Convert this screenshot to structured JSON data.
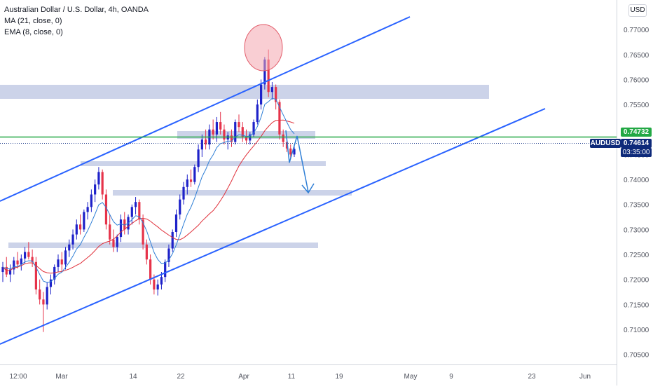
{
  "header": {
    "symbol_line": "Australian Dollar / U.S. Dollar, 4h, OANDA",
    "ma_line": "MA (21, close, 0)",
    "ema_line": "EMA (8, close, 0)"
  },
  "currency_button": "USD",
  "price_axis": {
    "ticks": [
      "0.77000",
      "0.76500",
      "0.76000",
      "0.75500",
      "0.75000",
      "0.74500",
      "0.74000",
      "0.73500",
      "0.73000",
      "0.72500",
      "0.72000",
      "0.71500",
      "0.71000",
      "0.70500"
    ]
  },
  "time_axis": {
    "ticks": [
      "12:00",
      "Mar",
      "14",
      "22",
      "Apr",
      "11",
      "19",
      "May",
      "9",
      "23",
      "Jun"
    ]
  },
  "badges": {
    "green_level": "0.74732",
    "symbol": "AUDUSD",
    "last_price": "0.74614",
    "countdown": "03:35:00"
  },
  "colors": {
    "up_candle": "#1e22c9",
    "down_candle": "#e6334a",
    "ma_line": "#e0303a",
    "ema_line": "#2f7fd6",
    "channel": "#2962ff",
    "zones": "#b7c0df",
    "green_level": "#22a844",
    "highlight_circle": "#f4a6ae"
  },
  "chart_data": {
    "type": "candlestick",
    "ylim": [
      0.703,
      0.7745
    ],
    "series": [
      {
        "name": "AUDUSD",
        "ohlc": [
          [
            0.7215,
            0.7235,
            0.7195,
            0.7225
          ],
          [
            0.7225,
            0.7245,
            0.7205,
            0.721
          ],
          [
            0.721,
            0.723,
            0.7195,
            0.722
          ],
          [
            0.722,
            0.7245,
            0.721,
            0.7238
          ],
          [
            0.7238,
            0.7255,
            0.7222,
            0.723
          ],
          [
            0.723,
            0.725,
            0.7218,
            0.7242
          ],
          [
            0.7242,
            0.7265,
            0.7232,
            0.7255
          ],
          [
            0.7255,
            0.7275,
            0.724,
            0.7245
          ],
          [
            0.7245,
            0.726,
            0.7225,
            0.7235
          ],
          [
            0.7235,
            0.7245,
            0.717,
            0.718
          ],
          [
            0.718,
            0.72,
            0.715,
            0.716
          ],
          [
            0.716,
            0.7175,
            0.7095,
            0.715
          ],
          [
            0.715,
            0.7195,
            0.714,
            0.7185
          ],
          [
            0.7185,
            0.721,
            0.717,
            0.72
          ],
          [
            0.72,
            0.723,
            0.719,
            0.7225
          ],
          [
            0.7225,
            0.725,
            0.7215,
            0.724
          ],
          [
            0.724,
            0.7255,
            0.7215,
            0.723
          ],
          [
            0.723,
            0.7265,
            0.722,
            0.7258
          ],
          [
            0.7258,
            0.728,
            0.7245,
            0.727
          ],
          [
            0.727,
            0.73,
            0.726,
            0.729
          ],
          [
            0.729,
            0.732,
            0.728,
            0.731
          ],
          [
            0.731,
            0.733,
            0.729,
            0.73
          ],
          [
            0.73,
            0.734,
            0.7295,
            0.7335
          ],
          [
            0.7335,
            0.7355,
            0.732,
            0.7345
          ],
          [
            0.7345,
            0.738,
            0.7335,
            0.737
          ],
          [
            0.737,
            0.74,
            0.7355,
            0.739
          ],
          [
            0.739,
            0.7425,
            0.738,
            0.7415
          ],
          [
            0.7415,
            0.742,
            0.736,
            0.737
          ],
          [
            0.737,
            0.738,
            0.73,
            0.731
          ],
          [
            0.731,
            0.733,
            0.727,
            0.728
          ],
          [
            0.728,
            0.73,
            0.7255,
            0.7265
          ],
          [
            0.7265,
            0.729,
            0.7255,
            0.7285
          ],
          [
            0.7285,
            0.733,
            0.7275,
            0.732
          ],
          [
            0.732,
            0.7335,
            0.729,
            0.73
          ],
          [
            0.73,
            0.733,
            0.729,
            0.7325
          ],
          [
            0.7325,
            0.735,
            0.731,
            0.7345
          ],
          [
            0.7345,
            0.7365,
            0.733,
            0.7355
          ],
          [
            0.7355,
            0.736,
            0.731,
            0.732
          ],
          [
            0.732,
            0.733,
            0.726,
            0.727
          ],
          [
            0.727,
            0.728,
            0.723,
            0.724
          ],
          [
            0.724,
            0.725,
            0.719,
            0.72
          ],
          [
            0.72,
            0.721,
            0.717,
            0.718
          ],
          [
            0.718,
            0.72,
            0.7168,
            0.719
          ],
          [
            0.719,
            0.7215,
            0.718,
            0.7205
          ],
          [
            0.7205,
            0.724,
            0.7195,
            0.7235
          ],
          [
            0.7235,
            0.727,
            0.7225,
            0.7262
          ],
          [
            0.7262,
            0.73,
            0.7255,
            0.7295
          ],
          [
            0.7295,
            0.734,
            0.7285,
            0.733
          ],
          [
            0.733,
            0.737,
            0.732,
            0.736
          ],
          [
            0.736,
            0.7395,
            0.735,
            0.7385
          ],
          [
            0.7385,
            0.741,
            0.737,
            0.74
          ],
          [
            0.74,
            0.742,
            0.7385,
            0.7395
          ],
          [
            0.7395,
            0.743,
            0.739,
            0.7425
          ],
          [
            0.7425,
            0.747,
            0.7415,
            0.746
          ],
          [
            0.746,
            0.749,
            0.7445,
            0.748
          ],
          [
            0.748,
            0.75,
            0.746,
            0.747
          ],
          [
            0.747,
            0.751,
            0.746,
            0.75
          ],
          [
            0.75,
            0.752,
            0.748,
            0.749
          ],
          [
            0.749,
            0.7525,
            0.7475,
            0.7515
          ],
          [
            0.7515,
            0.7535,
            0.749,
            0.75
          ],
          [
            0.75,
            0.751,
            0.747,
            0.748
          ],
          [
            0.748,
            0.7495,
            0.746,
            0.7488
          ],
          [
            0.7488,
            0.75,
            0.7465,
            0.7475
          ],
          [
            0.7475,
            0.752,
            0.747,
            0.7515
          ],
          [
            0.7515,
            0.753,
            0.7495,
            0.7505
          ],
          [
            0.7505,
            0.7515,
            0.7475,
            0.7485
          ],
          [
            0.7485,
            0.75,
            0.747,
            0.7478
          ],
          [
            0.7478,
            0.7495,
            0.747,
            0.749
          ],
          [
            0.749,
            0.752,
            0.7485,
            0.7515
          ],
          [
            0.7515,
            0.756,
            0.751,
            0.755
          ],
          [
            0.755,
            0.76,
            0.754,
            0.759
          ],
          [
            0.759,
            0.7645,
            0.758,
            0.764
          ],
          [
            0.764,
            0.766,
            0.7565,
            0.7575
          ],
          [
            0.7575,
            0.7595,
            0.756,
            0.7585
          ],
          [
            0.7585,
            0.759,
            0.754,
            0.7555
          ],
          [
            0.7555,
            0.756,
            0.748,
            0.749
          ],
          [
            0.749,
            0.75,
            0.7465,
            0.7475
          ],
          [
            0.7475,
            0.7485,
            0.7455,
            0.7462
          ],
          [
            0.7462,
            0.747,
            0.744,
            0.745
          ],
          [
            0.745,
            0.747,
            0.7445,
            0.7461
          ]
        ]
      },
      {
        "name": "MA (21, close, 0)"
      },
      {
        "name": "EMA (8, close, 0)"
      }
    ],
    "horizontal_level": 0.74732,
    "last_price": 0.74614
  }
}
